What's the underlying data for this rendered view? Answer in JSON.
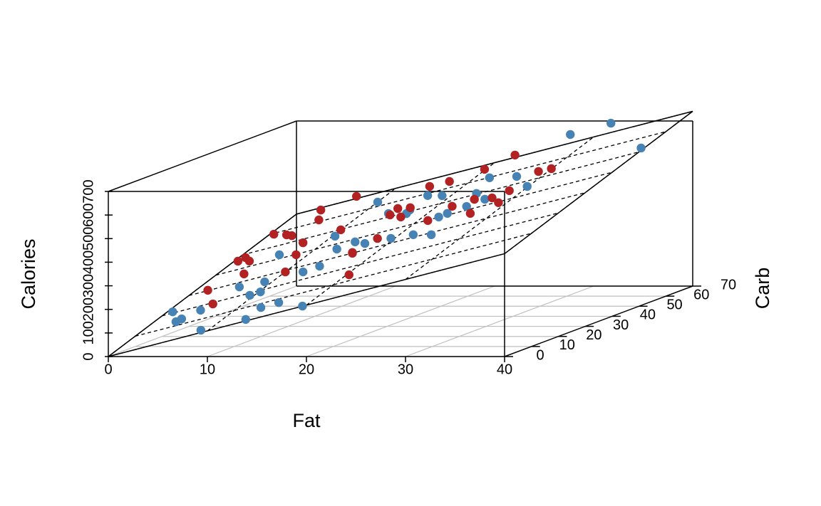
{
  "chart_data": {
    "type": "scatter3d",
    "xlabel": "Fat",
    "ylabel": "Carb",
    "zlabel": "Calories",
    "xlim": [
      0,
      40
    ],
    "ylim": [
      0,
      70
    ],
    "zlim": [
      0,
      700
    ],
    "xticks": [
      0,
      10,
      20,
      30,
      40
    ],
    "yticks": [
      0,
      10,
      20,
      30,
      40,
      50,
      60,
      70
    ],
    "zticks": [
      0,
      100,
      200,
      300,
      400,
      500,
      600,
      700
    ],
    "grid": true,
    "plane": {
      "intercept": 0,
      "x": 10.9,
      "y": 4.36
    },
    "series": [
      {
        "color": "#4682b4",
        "x": [
          0.8,
          3.3,
          3.6,
          4.7,
          8.8,
          5.9,
          13.6,
          9.4,
          13.5,
          10.2,
          9.0,
          15.3,
          5.6,
          19.6,
          12.6,
          14.0,
          10.4,
          13.3,
          14.6,
          16.4,
          10.1,
          19.3,
          16.8,
          22.1,
          16.5,
          25.0,
          22.5,
          23.1,
          24.5,
          23.6,
          25.8,
          22.2,
          26.3,
          29.8,
          29.0,
          33.1,
          39.4,
          16.6,
          13.9,
          18.5
        ],
        "y": [
          21,
          13,
          14,
          17,
          2,
          27,
          1,
          18,
          7,
          19,
          25,
          7,
          43,
          0,
          26,
          27,
          46,
          36,
          38,
          35,
          63,
          34,
          49,
          32,
          58,
          28,
          40,
          41,
          43,
          50,
          45,
          60,
          55,
          46,
          65,
          65,
          53,
          51,
          53,
          56
        ],
        "z": [
          100,
          92,
          100,
          124,
          103,
          180,
          153,
          183,
          178,
          193,
          210,
          199,
          248,
          214,
          248,
          268,
          314,
          302,
          324,
          330,
          386,
          356,
          397,
          380,
          435,
          397,
          421,
          432,
          453,
          478,
          475,
          502,
          529,
          525,
          664,
          712,
          658,
          404,
          380,
          443
        ]
      },
      {
        "color": "#b22222",
        "x": [
          1.9,
          5.4,
          0.6,
          4.2,
          1.1,
          2.3,
          0.7,
          10.0,
          2.8,
          3.6,
          8.1,
          6.9,
          4.7,
          3.0,
          9.9,
          20.5,
          16.5,
          6.6,
          17.4,
          14.6,
          14.3,
          16.5,
          21.4,
          14.8,
          16.8,
          26.5,
          24.2,
          19.8,
          26.8,
          28.8,
          28.0,
          22.6,
          28.5,
          29.8,
          16.5,
          22.5,
          16.1
        ],
        "y": [
          30,
          19,
          46,
          35,
          47,
          44,
          59,
          29,
          56,
          55,
          40,
          47,
          61,
          68,
          50,
          14,
          30,
          68,
          36,
          51,
          55,
          48,
          40,
          65,
          65,
          37,
          47,
          67,
          44,
          39,
          46,
          68,
          55,
          55,
          30,
          45,
          53
        ],
        "z": [
          153,
          142,
          208,
          201,
          219,
          217,
          267,
          235,
          277,
          278,
          261,
          282,
          319,
          331,
          324,
          287,
          313,
          389,
          347,
          383,
          393,
          387,
          406,
          444,
          465,
          449,
          466,
          508,
          485,
          486,
          507,
          564,
          550,
          562,
          310,
          445,
          405
        ]
      }
    ]
  }
}
